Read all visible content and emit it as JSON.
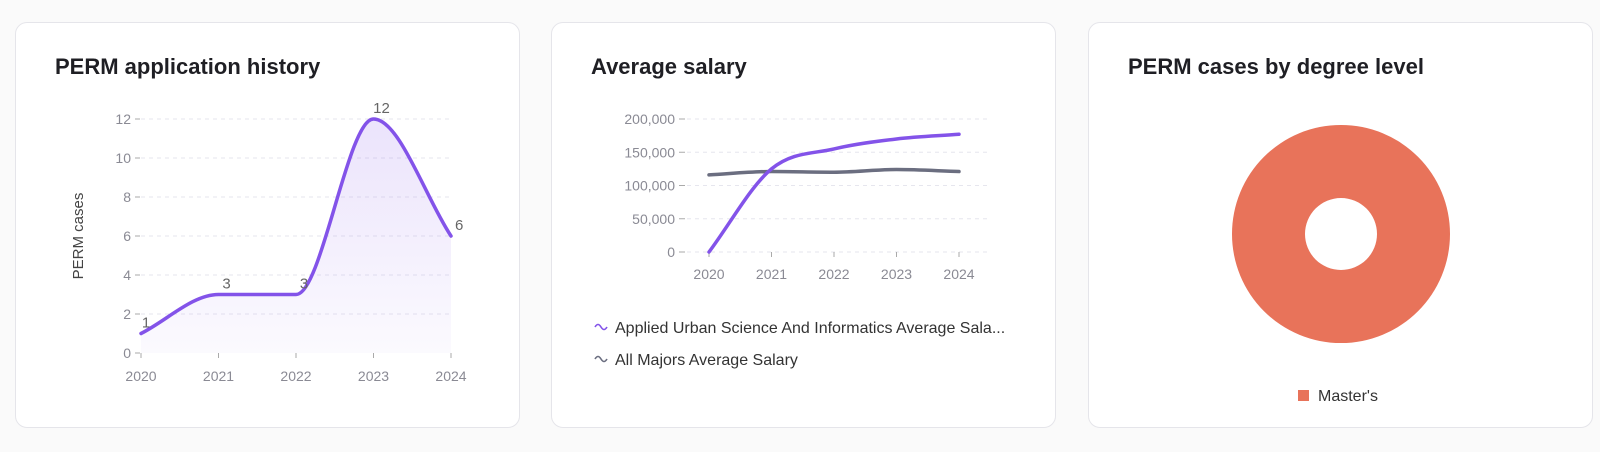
{
  "colors": {
    "purple": "#8353e9",
    "gray": "#6b6e80",
    "coral": "#e8735a",
    "grid": "#e6e6ee"
  },
  "cards": [
    {
      "title": "PERM application history",
      "chart_data": {
        "type": "area",
        "x": [
          "2020",
          "2021",
          "2022",
          "2023",
          "2024"
        ],
        "series": [
          {
            "values": [
              1,
              3,
              3,
              12,
              6
            ]
          }
        ],
        "ylabel": "PERM cases",
        "ylim": [
          0,
          12
        ],
        "yticks": [
          0,
          2,
          4,
          6,
          8,
          10,
          12
        ],
        "data_labels": true,
        "grid": true
      }
    },
    {
      "title": "Average salary",
      "chart_data": {
        "type": "line",
        "x": [
          "2020",
          "2021",
          "2022",
          "2023",
          "2024"
        ],
        "series": [
          {
            "name": "Applied Urban Science And Informatics Average Sala...",
            "color": "#8353e9",
            "values": [
              0,
              125000,
              155000,
              170000,
              177000
            ]
          },
          {
            "name": "All Majors Average Salary",
            "color": "#6b6e80",
            "values": [
              116000,
              121000,
              120000,
              124000,
              121000
            ]
          }
        ],
        "ylim": [
          0,
          200000
        ],
        "yticks": [
          "0",
          "50,000",
          "100,000",
          "150,000",
          "200,000"
        ],
        "ytick_values": [
          0,
          50000,
          100000,
          150000,
          200000
        ],
        "grid": true,
        "legend": "bottom"
      }
    },
    {
      "title": "PERM cases by degree level",
      "chart_data": {
        "type": "pie",
        "donut": true,
        "slices": [
          {
            "label": "Master's",
            "value": 1,
            "color": "#e8735a"
          }
        ],
        "legend": "bottom"
      }
    }
  ]
}
